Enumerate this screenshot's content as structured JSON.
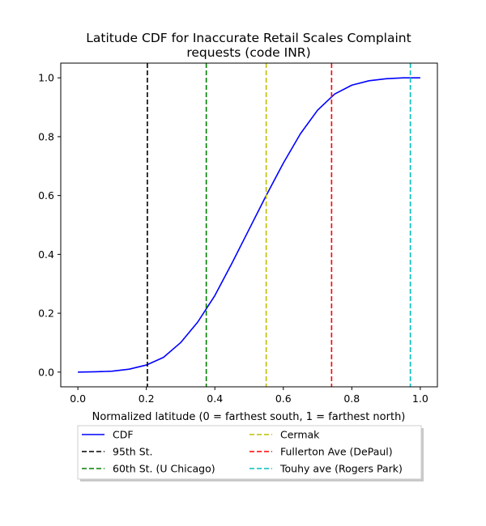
{
  "chart_data": {
    "type": "line",
    "title_lines": [
      "Latitude CDF for Inaccurate Retail Scales Complaint",
      "requests (code INR)"
    ],
    "xlabel": "Normalized latitude (0 = farthest south, 1 = farthest north)",
    "ylabel": "",
    "xlim": [
      -0.05,
      1.05
    ],
    "ylim": [
      -0.05,
      1.05
    ],
    "xticks": [
      0.0,
      0.2,
      0.4,
      0.6,
      0.8,
      1.0
    ],
    "xtick_labels": [
      "0.0",
      "0.2",
      "0.4",
      "0.6",
      "0.8",
      "1.0"
    ],
    "yticks": [
      0.0,
      0.2,
      0.4,
      0.6,
      0.8,
      1.0
    ],
    "ytick_labels": [
      "0.0",
      "0.2",
      "0.4",
      "0.6",
      "0.8",
      "1.0"
    ],
    "grid": false,
    "legend_placement": "below",
    "series": [
      {
        "name": "CDF",
        "color": "#0000ff",
        "style": "solid",
        "x": [
          0.0,
          0.05,
          0.1,
          0.15,
          0.2,
          0.25,
          0.3,
          0.35,
          0.375,
          0.4,
          0.45,
          0.5,
          0.55,
          0.6,
          0.65,
          0.7,
          0.75,
          0.8,
          0.85,
          0.9,
          0.95,
          1.0
        ],
        "y": [
          0.0,
          0.001,
          0.003,
          0.01,
          0.024,
          0.05,
          0.1,
          0.17,
          0.215,
          0.26,
          0.37,
          0.485,
          0.6,
          0.71,
          0.81,
          0.89,
          0.945,
          0.975,
          0.99,
          0.997,
          1.0,
          1.0
        ]
      }
    ],
    "vlines": [
      {
        "name": "95th St.",
        "x": 0.203,
        "color": "#000000"
      },
      {
        "name": "60th St. (U Chicago)",
        "x": 0.375,
        "color": "#008000"
      },
      {
        "name": "Cermak",
        "x": 0.55,
        "color": "#bfbf00"
      },
      {
        "name": "Fullerton Ave (DePaul)",
        "x": 0.741,
        "color": "#ff0000"
      },
      {
        "name": "Touhy ave (Rogers Park)",
        "x": 0.971,
        "color": "#00bfbf"
      }
    ]
  }
}
